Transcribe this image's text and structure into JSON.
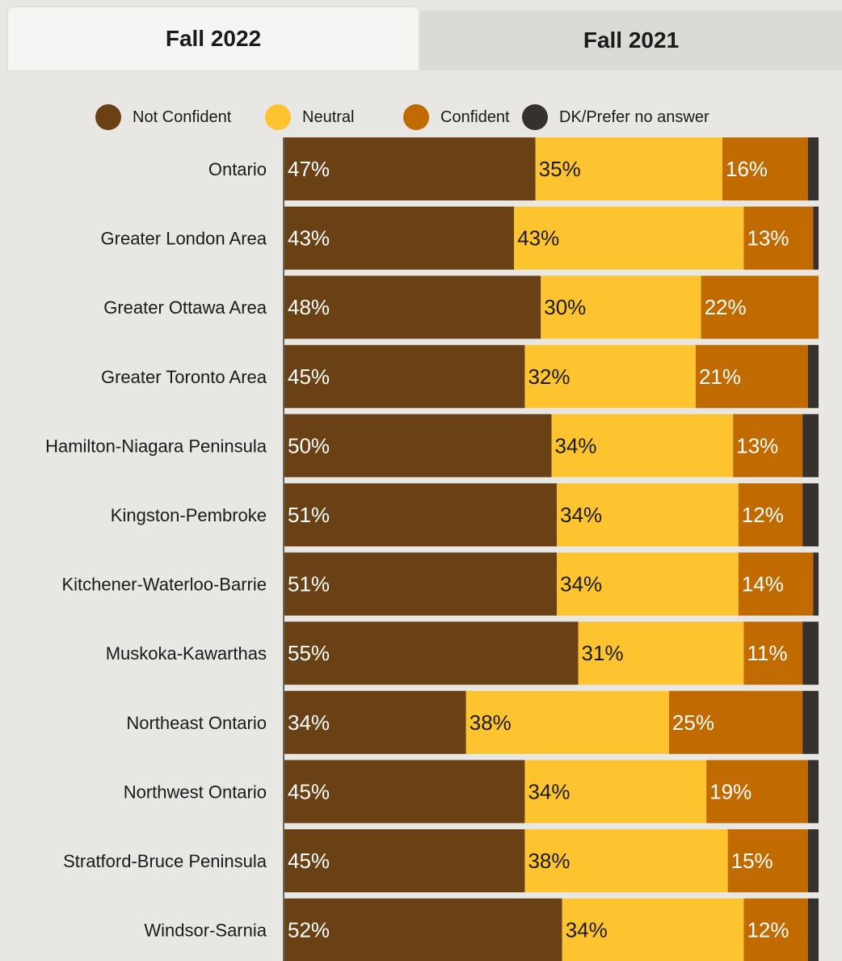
{
  "tabs": [
    {
      "label": "Fall 2022",
      "active": true
    },
    {
      "label": "Fall 2021",
      "active": false
    }
  ],
  "colors": {
    "not_confident": "#6a4114",
    "neutral": "#fdc42f",
    "confident": "#c06a00",
    "dk": "#36312c"
  },
  "legend": [
    {
      "label": "Not Confident",
      "color": "#6a4114"
    },
    {
      "label": "Neutral",
      "color": "#fdc42f"
    },
    {
      "label": "Confident",
      "color": "#c06a00"
    },
    {
      "label": "DK/Prefer no answer",
      "color": "#36312c"
    }
  ],
  "chart_data": {
    "type": "bar",
    "orientation": "horizontal",
    "stacked": true,
    "xlim": [
      0,
      100
    ],
    "categories": [
      "Ontario",
      "Greater London Area",
      "Greater Ottawa Area",
      "Greater Toronto Area",
      "Hamilton-Niagara Peninsula",
      "Kingston-Pembroke",
      "Kitchener-Waterloo-Barrie",
      "Muskoka-Kawarthas",
      "Northeast Ontario",
      "Northwest Ontario",
      "Stratford-Bruce Peninsula",
      "Windsor-Sarnia"
    ],
    "series": [
      {
        "name": "Not Confident",
        "values": [
          47,
          43,
          48,
          45,
          50,
          51,
          51,
          55,
          34,
          45,
          45,
          52
        ]
      },
      {
        "name": "Neutral",
        "values": [
          35,
          43,
          30,
          32,
          34,
          34,
          34,
          31,
          38,
          34,
          38,
          34
        ]
      },
      {
        "name": "Confident",
        "values": [
          16,
          13,
          22,
          21,
          13,
          12,
          14,
          11,
          25,
          19,
          15,
          12
        ]
      },
      {
        "name": "DK/Prefer no answer",
        "values": [
          2,
          1,
          0,
          2,
          3,
          3,
          1,
          3,
          3,
          2,
          2,
          2
        ]
      }
    ],
    "value_labels": [
      [
        "47%",
        "35%",
        "16%"
      ],
      [
        "43%",
        "43%",
        "13%"
      ],
      [
        "48%",
        "30%",
        "22%"
      ],
      [
        "45%",
        "32%",
        "21%"
      ],
      [
        "50%",
        "34%",
        "13%"
      ],
      [
        "51%",
        "34%",
        "12%"
      ],
      [
        "51%",
        "34%",
        "14%"
      ],
      [
        "55%",
        "31%",
        "11%"
      ],
      [
        "34%",
        "38%",
        "25%"
      ],
      [
        "45%",
        "34%",
        "19%"
      ],
      [
        "45%",
        "38%",
        "15%"
      ],
      [
        "52%",
        "34%",
        "12%"
      ]
    ]
  }
}
